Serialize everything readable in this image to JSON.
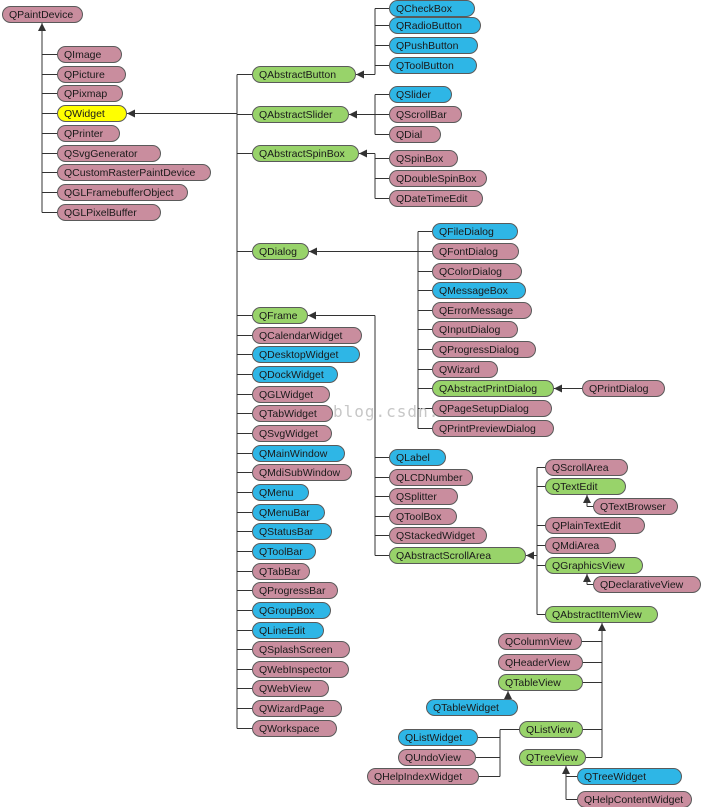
{
  "colors": {
    "pink": "#c98d9e",
    "blue": "#2eb6e6",
    "green": "#98d36a",
    "yellow": "#ffff00",
    "line": "#333333"
  },
  "watermark": "blog.csdn.n",
  "nodes": {
    "QPaintDevice": {
      "label": "QPaintDevice",
      "color": "pink"
    },
    "QImage": {
      "label": "QImage",
      "color": "pink"
    },
    "QPicture": {
      "label": "QPicture",
      "color": "pink"
    },
    "QPixmap": {
      "label": "QPixmap",
      "color": "pink"
    },
    "QWidget": {
      "label": "QWidget",
      "color": "yellow"
    },
    "QPrinter": {
      "label": "QPrinter",
      "color": "pink"
    },
    "QSvgGenerator": {
      "label": "QSvgGenerator",
      "color": "pink"
    },
    "QCustomRasterPaintDevice": {
      "label": "QCustomRasterPaintDevice",
      "color": "pink"
    },
    "QGLFramebufferObject": {
      "label": "QGLFramebufferObject",
      "color": "pink"
    },
    "QGLPixelBuffer": {
      "label": "QGLPixelBuffer",
      "color": "pink"
    },
    "QAbstractButton": {
      "label": "QAbstractButton",
      "color": "green"
    },
    "QAbstractSlider": {
      "label": "QAbstractSlider",
      "color": "green"
    },
    "QAbstractSpinBox": {
      "label": "QAbstractSpinBox",
      "color": "green"
    },
    "QDialog": {
      "label": "QDialog",
      "color": "green"
    },
    "QFrame": {
      "label": "QFrame",
      "color": "green"
    },
    "QCalendarWidget": {
      "label": "QCalendarWidget",
      "color": "pink"
    },
    "QDesktopWidget": {
      "label": "QDesktopWidget",
      "color": "blue"
    },
    "QDockWidget": {
      "label": "QDockWidget",
      "color": "blue"
    },
    "QGLWidget": {
      "label": "QGLWidget",
      "color": "pink"
    },
    "QTabWidget": {
      "label": "QTabWidget",
      "color": "pink"
    },
    "QSvgWidget": {
      "label": "QSvgWidget",
      "color": "pink"
    },
    "QMainWindow": {
      "label": "QMainWindow",
      "color": "blue"
    },
    "QMdiSubWindow": {
      "label": "QMdiSubWindow",
      "color": "pink"
    },
    "QMenu": {
      "label": "QMenu",
      "color": "blue"
    },
    "QMenuBar": {
      "label": "QMenuBar",
      "color": "blue"
    },
    "QStatusBar": {
      "label": "QStatusBar",
      "color": "blue"
    },
    "QToolBar": {
      "label": "QToolBar",
      "color": "blue"
    },
    "QTabBar": {
      "label": "QTabBar",
      "color": "pink"
    },
    "QProgressBar": {
      "label": "QProgressBar",
      "color": "pink"
    },
    "QGroupBox": {
      "label": "QGroupBox",
      "color": "blue"
    },
    "QLineEdit": {
      "label": "QLineEdit",
      "color": "blue"
    },
    "QSplashScreen": {
      "label": "QSplashScreen",
      "color": "pink"
    },
    "QWebInspector": {
      "label": "QWebInspector",
      "color": "pink"
    },
    "QWebView": {
      "label": "QWebView",
      "color": "pink"
    },
    "QWizardPage": {
      "label": "QWizardPage",
      "color": "pink"
    },
    "QWorkspace": {
      "label": "QWorkspace",
      "color": "pink"
    },
    "QCheckBox": {
      "label": "QCheckBox",
      "color": "blue"
    },
    "QRadioButton": {
      "label": "QRadioButton",
      "color": "blue"
    },
    "QPushButton": {
      "label": "QPushButton",
      "color": "blue"
    },
    "QToolButton": {
      "label": "QToolButton",
      "color": "blue"
    },
    "QSlider": {
      "label": "QSlider",
      "color": "blue"
    },
    "QScrollBar": {
      "label": "QScrollBar",
      "color": "pink"
    },
    "QDial": {
      "label": "QDial",
      "color": "pink"
    },
    "QSpinBox": {
      "label": "QSpinBox",
      "color": "pink"
    },
    "QDoubleSpinBox": {
      "label": "QDoubleSpinBox",
      "color": "pink"
    },
    "QDateTimeEdit": {
      "label": "QDateTimeEdit",
      "color": "pink"
    },
    "QFileDialog": {
      "label": "QFileDialog",
      "color": "blue"
    },
    "QFontDialog": {
      "label": "QFontDialog",
      "color": "pink"
    },
    "QColorDialog": {
      "label": "QColorDialog",
      "color": "pink"
    },
    "QMessageBox": {
      "label": "QMessageBox",
      "color": "blue"
    },
    "QErrorMessage": {
      "label": "QErrorMessage",
      "color": "pink"
    },
    "QInputDialog": {
      "label": "QInputDialog",
      "color": "pink"
    },
    "QProgressDialog": {
      "label": "QProgressDialog",
      "color": "pink"
    },
    "QWizard": {
      "label": "QWizard",
      "color": "pink"
    },
    "QAbstractPrintDialog": {
      "label": "QAbstractPrintDialog",
      "color": "green"
    },
    "QPrintDialog": {
      "label": "QPrintDialog",
      "color": "pink"
    },
    "QPageSetupDialog": {
      "label": "QPageSetupDialog",
      "color": "pink"
    },
    "QPrintPreviewDialog": {
      "label": "QPrintPreviewDialog",
      "color": "pink"
    },
    "QLabel": {
      "label": "QLabel",
      "color": "blue"
    },
    "QLCDNumber": {
      "label": "QLCDNumber",
      "color": "pink"
    },
    "QSplitter": {
      "label": "QSplitter",
      "color": "pink"
    },
    "QToolBox": {
      "label": "QToolBox",
      "color": "pink"
    },
    "QStackedWidget": {
      "label": "QStackedWidget",
      "color": "pink"
    },
    "QAbstractScrollArea": {
      "label": "QAbstractScrollArea",
      "color": "green"
    },
    "QScrollArea": {
      "label": "QScrollArea",
      "color": "pink"
    },
    "QTextEdit": {
      "label": "QTextEdit",
      "color": "green"
    },
    "QTextBrowser": {
      "label": "QTextBrowser",
      "color": "pink"
    },
    "QPlainTextEdit": {
      "label": "QPlainTextEdit",
      "color": "pink"
    },
    "QMdiArea": {
      "label": "QMdiArea",
      "color": "pink"
    },
    "QGraphicsView": {
      "label": "QGraphicsView",
      "color": "green"
    },
    "QDeclarativeView": {
      "label": "QDeclarativeView",
      "color": "pink"
    },
    "QAbstractItemView": {
      "label": "QAbstractItemView",
      "color": "green"
    },
    "QColumnView": {
      "label": "QColumnView",
      "color": "pink"
    },
    "QHeaderView": {
      "label": "QHeaderView",
      "color": "pink"
    },
    "QTableView": {
      "label": "QTableView",
      "color": "green"
    },
    "QTableWidget": {
      "label": "QTableWidget",
      "color": "blue"
    },
    "QListView": {
      "label": "QListView",
      "color": "green"
    },
    "QListWidget": {
      "label": "QListWidget",
      "color": "blue"
    },
    "QUndoView": {
      "label": "QUndoView",
      "color": "pink"
    },
    "QHelpIndexWidget": {
      "label": "QHelpIndexWidget",
      "color": "pink"
    },
    "QTreeView": {
      "label": "QTreeView",
      "color": "green"
    },
    "QTreeWidget": {
      "label": "QTreeWidget",
      "color": "blue"
    },
    "QHelpContentWidget": {
      "label": "QHelpContentWidget",
      "color": "pink"
    }
  },
  "inheritance": [
    [
      "QImage",
      "QPaintDevice"
    ],
    [
      "QPicture",
      "QPaintDevice"
    ],
    [
      "QPixmap",
      "QPaintDevice"
    ],
    [
      "QWidget",
      "QPaintDevice"
    ],
    [
      "QPrinter",
      "QPaintDevice"
    ],
    [
      "QSvgGenerator",
      "QPaintDevice"
    ],
    [
      "QCustomRasterPaintDevice",
      "QPaintDevice"
    ],
    [
      "QGLFramebufferObject",
      "QPaintDevice"
    ],
    [
      "QGLPixelBuffer",
      "QPaintDevice"
    ],
    [
      "QAbstractButton",
      "QWidget"
    ],
    [
      "QAbstractSlider",
      "QWidget"
    ],
    [
      "QAbstractSpinBox",
      "QWidget"
    ],
    [
      "QDialog",
      "QWidget"
    ],
    [
      "QFrame",
      "QWidget"
    ],
    [
      "QCalendarWidget",
      "QWidget"
    ],
    [
      "QDesktopWidget",
      "QWidget"
    ],
    [
      "QDockWidget",
      "QWidget"
    ],
    [
      "QGLWidget",
      "QWidget"
    ],
    [
      "QTabWidget",
      "QWidget"
    ],
    [
      "QSvgWidget",
      "QWidget"
    ],
    [
      "QMainWindow",
      "QWidget"
    ],
    [
      "QMdiSubWindow",
      "QWidget"
    ],
    [
      "QMenu",
      "QWidget"
    ],
    [
      "QMenuBar",
      "QWidget"
    ],
    [
      "QStatusBar",
      "QWidget"
    ],
    [
      "QToolBar",
      "QWidget"
    ],
    [
      "QTabBar",
      "QWidget"
    ],
    [
      "QProgressBar",
      "QWidget"
    ],
    [
      "QGroupBox",
      "QWidget"
    ],
    [
      "QLineEdit",
      "QWidget"
    ],
    [
      "QSplashScreen",
      "QWidget"
    ],
    [
      "QWebInspector",
      "QWidget"
    ],
    [
      "QWebView",
      "QWidget"
    ],
    [
      "QWizardPage",
      "QWidget"
    ],
    [
      "QWorkspace",
      "QWidget"
    ],
    [
      "QCheckBox",
      "QAbstractButton"
    ],
    [
      "QRadioButton",
      "QAbstractButton"
    ],
    [
      "QPushButton",
      "QAbstractButton"
    ],
    [
      "QToolButton",
      "QAbstractButton"
    ],
    [
      "QSlider",
      "QAbstractSlider"
    ],
    [
      "QScrollBar",
      "QAbstractSlider"
    ],
    [
      "QDial",
      "QAbstractSlider"
    ],
    [
      "QSpinBox",
      "QAbstractSpinBox"
    ],
    [
      "QDoubleSpinBox",
      "QAbstractSpinBox"
    ],
    [
      "QDateTimeEdit",
      "QAbstractSpinBox"
    ],
    [
      "QFileDialog",
      "QDialog"
    ],
    [
      "QFontDialog",
      "QDialog"
    ],
    [
      "QColorDialog",
      "QDialog"
    ],
    [
      "QMessageBox",
      "QDialog"
    ],
    [
      "QErrorMessage",
      "QDialog"
    ],
    [
      "QInputDialog",
      "QDialog"
    ],
    [
      "QProgressDialog",
      "QDialog"
    ],
    [
      "QWizard",
      "QDialog"
    ],
    [
      "QAbstractPrintDialog",
      "QDialog"
    ],
    [
      "QPageSetupDialog",
      "QDialog"
    ],
    [
      "QPrintPreviewDialog",
      "QDialog"
    ],
    [
      "QPrintDialog",
      "QAbstractPrintDialog"
    ],
    [
      "QLabel",
      "QFrame"
    ],
    [
      "QLCDNumber",
      "QFrame"
    ],
    [
      "QSplitter",
      "QFrame"
    ],
    [
      "QToolBox",
      "QFrame"
    ],
    [
      "QStackedWidget",
      "QFrame"
    ],
    [
      "QAbstractScrollArea",
      "QFrame"
    ],
    [
      "QScrollArea",
      "QAbstractScrollArea"
    ],
    [
      "QTextEdit",
      "QAbstractScrollArea"
    ],
    [
      "QPlainTextEdit",
      "QAbstractScrollArea"
    ],
    [
      "QMdiArea",
      "QAbstractScrollArea"
    ],
    [
      "QGraphicsView",
      "QAbstractScrollArea"
    ],
    [
      "QAbstractItemView",
      "QAbstractScrollArea"
    ],
    [
      "QTextBrowser",
      "QTextEdit"
    ],
    [
      "QDeclarativeView",
      "QGraphicsView"
    ],
    [
      "QColumnView",
      "QAbstractItemView"
    ],
    [
      "QHeaderView",
      "QAbstractItemView"
    ],
    [
      "QTableView",
      "QAbstractItemView"
    ],
    [
      "QListView",
      "QAbstractItemView"
    ],
    [
      "QTreeView",
      "QAbstractItemView"
    ],
    [
      "QTableWidget",
      "QTableView"
    ],
    [
      "QListWidget",
      "QListView"
    ],
    [
      "QUndoView",
      "QListView"
    ],
    [
      "QHelpIndexWidget",
      "QListView"
    ],
    [
      "QTreeWidget",
      "QTreeView"
    ],
    [
      "QHelpContentWidget",
      "QTreeView"
    ]
  ]
}
